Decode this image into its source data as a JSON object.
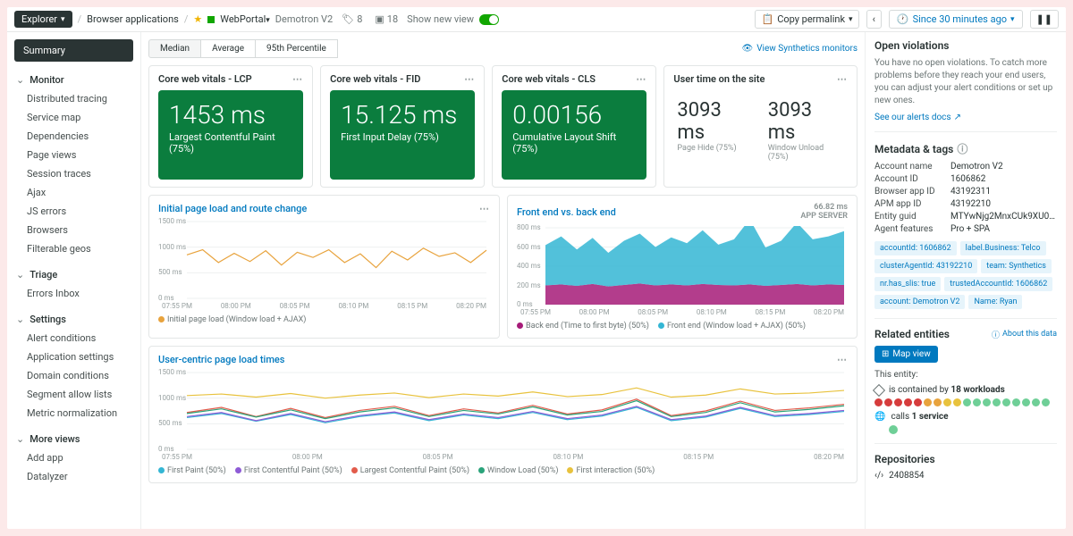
{
  "topbar": {
    "explorer": "Explorer",
    "crumb1": "Browser applications",
    "app": "WebPortal",
    "entity": "Demotron V2",
    "tag_count": "8",
    "badge_count": "18",
    "show_new": "Show new view",
    "copy": "Copy permalink",
    "time": "Since 30 minutes ago"
  },
  "sidebar": {
    "summary": "Summary",
    "monitor": {
      "hd": "Monitor",
      "items": [
        "Distributed tracing",
        "Service map",
        "Dependencies",
        "Page views",
        "Session traces",
        "Ajax",
        "JS errors",
        "Browsers",
        "Filterable geos"
      ]
    },
    "triage": {
      "hd": "Triage",
      "items": [
        "Errors Inbox"
      ]
    },
    "settings": {
      "hd": "Settings",
      "items": [
        "Alert conditions",
        "Application settings",
        "Domain conditions",
        "Segment allow lists",
        "Metric normalization"
      ]
    },
    "more": {
      "hd": "More views",
      "items": [
        "Add app",
        "Datalyzer"
      ]
    }
  },
  "percentiles": {
    "median": "Median",
    "avg": "Average",
    "p95": "95th Percentile"
  },
  "synth": "View Synthetics monitors",
  "cwv": [
    {
      "title": "Core web vitals - LCP",
      "big": "1453 ms",
      "sub": "Largest Contentful Paint (75%)"
    },
    {
      "title": "Core web vitals - FID",
      "big": "15.125 ms",
      "sub": "First Input Delay (75%)"
    },
    {
      "title": "Core web vitals - CLS",
      "big": "0.00156",
      "sub": "Cumulative Layout Shift (75%)"
    }
  ],
  "cwv_bg": "#0b7d3e",
  "user_time": {
    "title": "User time on the site",
    "hide": {
      "v": "3093 ms",
      "l": "Page Hide (75%)"
    },
    "unload": {
      "v": "3093 ms",
      "l": "Window Unload (75%)"
    }
  },
  "chart1": {
    "title": "Initial page load and route change",
    "type": "line",
    "ylim": [
      0,
      1500
    ],
    "ytick": 500,
    "y_unit": "ms",
    "x": [
      "07:55 PM",
      "08:00 PM",
      "08:05 PM",
      "08:10 PM",
      "08:15 PM",
      "08:20 PM"
    ],
    "series": [
      {
        "name": "Initial page load (Window load + AJAX)",
        "color": "#e8a33d",
        "vals": [
          850,
          950,
          700,
          880,
          720,
          930,
          650,
          900,
          800,
          950,
          700,
          870,
          600,
          920,
          750,
          980,
          820,
          890,
          700,
          940
        ]
      }
    ]
  },
  "chart2": {
    "title": "Front end vs. back end",
    "type": "area",
    "meta_val": "66.82 ms",
    "meta_lbl": "APP SERVER",
    "ylim": [
      0,
      800
    ],
    "ytick": 200,
    "y_unit": "ms",
    "x": [
      "07:55 PM",
      "08:00 PM",
      "08:05 PM",
      "08:10 PM",
      "08:15 PM",
      "08:20 PM"
    ],
    "series": [
      {
        "name": "Back end (Time to first byte) (50%)",
        "color": "#a61b78",
        "vals": [
          200,
          210,
          195,
          215,
          190,
          205,
          220,
          200,
          210,
          200,
          215,
          205,
          200,
          210,
          195,
          205,
          215,
          200,
          210,
          205
        ]
      },
      {
        "name": "Front end (Window load + AJAX) (50%)",
        "color": "#34b6d4",
        "vals": [
          420,
          500,
          380,
          480,
          350,
          460,
          520,
          400,
          490,
          440,
          560,
          420,
          480,
          680,
          400,
          460,
          640,
          480,
          500,
          560
        ]
      }
    ]
  },
  "chart3": {
    "title": "User-centric page load times",
    "type": "line",
    "ylim": [
      0,
      1500
    ],
    "ytick": 500,
    "y_unit": "ms",
    "x": [
      "07:55 PM",
      "08:00 PM",
      "08:05 PM",
      "08:10 PM",
      "08:15 PM",
      "08:20 PM"
    ],
    "series": [
      {
        "name": "First Paint (50%)",
        "color": "#34b6d4",
        "vals": [
          620,
          700,
          550,
          680,
          520,
          640,
          710,
          560,
          670,
          600,
          720,
          580,
          650,
          820,
          560,
          630,
          800,
          640,
          680,
          740
        ]
      },
      {
        "name": "First Contentful Paint (50%)",
        "color": "#8e5bd6",
        "vals": [
          640,
          720,
          560,
          700,
          540,
          660,
          730,
          580,
          690,
          620,
          740,
          600,
          670,
          840,
          580,
          650,
          820,
          660,
          700,
          760
        ]
      },
      {
        "name": "Largest Contentful Paint (50%)",
        "color": "#e25b4b",
        "vals": [
          720,
          820,
          640,
          800,
          620,
          760,
          840,
          660,
          790,
          710,
          860,
          690,
          770,
          980,
          660,
          750,
          940,
          760,
          810,
          880
        ]
      },
      {
        "name": "Window Load (50%)",
        "color": "#2aa37a",
        "vals": [
          700,
          790,
          630,
          770,
          600,
          730,
          810,
          640,
          760,
          690,
          830,
          670,
          740,
          950,
          640,
          720,
          910,
          730,
          780,
          850
        ]
      },
      {
        "name": "First interaction (50%)",
        "color": "#e8c23d",
        "vals": [
          1050,
          1080,
          1020,
          1090,
          1000,
          1060,
          1100,
          1010,
          1080,
          1040,
          1120,
          1030,
          1070,
          1200,
          1020,
          1060,
          1180,
          1080,
          1100,
          1150
        ]
      }
    ]
  },
  "violations": {
    "hd": "Open violations",
    "txt": "You have no open violations. To catch more problems before they reach your end users, you can adjust your alert conditions or set up new ones.",
    "link": "See our alerts docs"
  },
  "metadata": {
    "hd": "Metadata & tags",
    "rows": [
      [
        "Account name",
        "Demotron V2"
      ],
      [
        "Account ID",
        "1606862"
      ],
      [
        "Browser app ID",
        "43192311"
      ],
      [
        "APM app ID",
        "43192210"
      ],
      [
        "Entity guid",
        "MTYwNjg2MnxCUk9XU0VSfEFQUExjQ0F..."
      ],
      [
        "Agent features",
        "Pro + SPA"
      ]
    ],
    "tags": [
      "accountId: 1606862",
      "label.Business: Telco",
      "clusterAgentId: 43192210",
      "team: Synthetics",
      "nr.has_slis: true",
      "trustedAccountId: 1606862",
      "account: Demotron V2",
      "Name: Ryan"
    ]
  },
  "related": {
    "hd": "Related entities",
    "about": "About this data",
    "map": "Map view",
    "this": "This entity:",
    "contains_pre": "is contained by ",
    "contains_b": "18 workloads",
    "wl_colors": [
      "#d63c3c",
      "#d63c3c",
      "#d63c3c",
      "#d63c3c",
      "#d63c3c",
      "#e8a33d",
      "#e8a33d",
      "#e8c23d",
      "#e8c23d",
      "#6fcf97",
      "#6fcf97",
      "#6fcf97",
      "#6fcf97",
      "#6fcf97",
      "#6fcf97",
      "#6fcf97",
      "#6fcf97",
      "#6fcf97"
    ],
    "calls_pre": "calls ",
    "calls_b": "1 service"
  },
  "repos": {
    "hd": "Repositories",
    "id": "2408854"
  }
}
